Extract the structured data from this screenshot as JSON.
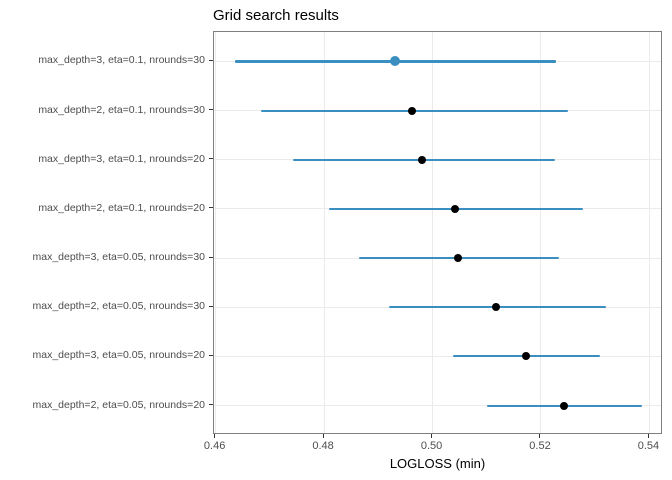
{
  "title": "Grid search results",
  "colors": {
    "interval_blue": "#3a8ec0",
    "dot_black": "#000000",
    "highlight_dot": "#3a8ec0",
    "gridline": "#ebebeb",
    "panel_border": "#7f7f7f",
    "tick_mark": "#333333",
    "tick_text": "#4d4d4d",
    "title_text": "#000000"
  },
  "chart_data": {
    "type": "scatter",
    "subtype": "dot-plot-with-horizontal-error-bars",
    "title": "Grid search results",
    "xlabel": "LOGLOSS (min)",
    "ylabel": "",
    "xlim": [
      0.4597,
      0.5425
    ],
    "grid": true,
    "legend": "none",
    "x_ticks": [
      {
        "value": 0.46,
        "label": "0.46"
      },
      {
        "value": 0.48,
        "label": "0.48"
      },
      {
        "value": 0.5,
        "label": "0.50"
      },
      {
        "value": 0.52,
        "label": "0.52"
      },
      {
        "value": 0.54,
        "label": "0.54"
      }
    ],
    "categories": [
      "max_depth=3, eta=0.1, nrounds=30",
      "max_depth=2, eta=0.1, nrounds=30",
      "max_depth=3, eta=0.1, nrounds=20",
      "max_depth=2, eta=0.1, nrounds=20",
      "max_depth=3, eta=0.05, nrounds=30",
      "max_depth=2, eta=0.05, nrounds=30",
      "max_depth=3, eta=0.05, nrounds=20",
      "max_depth=2, eta=0.05, nrounds=20"
    ],
    "points": [
      {
        "category": "max_depth=3, eta=0.1, nrounds=30",
        "mean": 0.493,
        "lower": 0.4635,
        "upper": 0.5228,
        "highlighted": true
      },
      {
        "category": "max_depth=2, eta=0.1, nrounds=30",
        "mean": 0.4963,
        "lower": 0.4683,
        "upper": 0.525,
        "highlighted": false
      },
      {
        "category": "max_depth=3, eta=0.1, nrounds=20",
        "mean": 0.4981,
        "lower": 0.4742,
        "upper": 0.5225,
        "highlighted": false
      },
      {
        "category": "max_depth=2, eta=0.1, nrounds=20",
        "mean": 0.5042,
        "lower": 0.4809,
        "upper": 0.5278,
        "highlighted": false
      },
      {
        "category": "max_depth=3, eta=0.05, nrounds=30",
        "mean": 0.5047,
        "lower": 0.4864,
        "upper": 0.5233,
        "highlighted": false
      },
      {
        "category": "max_depth=2, eta=0.05, nrounds=30",
        "mean": 0.5117,
        "lower": 0.4919,
        "upper": 0.532,
        "highlighted": false
      },
      {
        "category": "max_depth=3, eta=0.05, nrounds=20",
        "mean": 0.5172,
        "lower": 0.5037,
        "upper": 0.5308,
        "highlighted": false
      },
      {
        "category": "max_depth=2, eta=0.05, nrounds=20",
        "mean": 0.5243,
        "lower": 0.5101,
        "upper": 0.5387,
        "highlighted": false
      }
    ]
  }
}
